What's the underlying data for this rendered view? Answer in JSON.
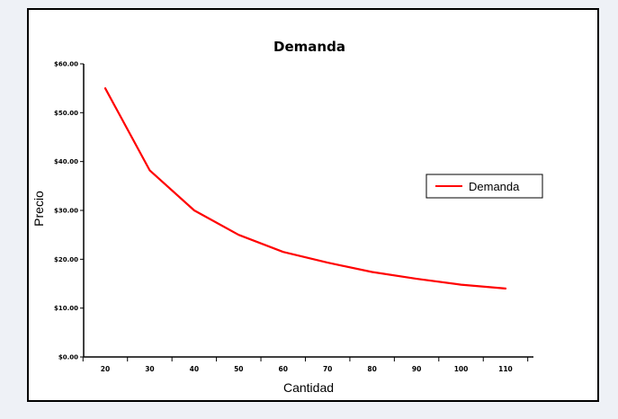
{
  "chart_data": {
    "type": "line",
    "title": "Demanda",
    "xlabel": "Cantidad",
    "ylabel": "Precio",
    "x": [
      20,
      30,
      40,
      50,
      60,
      70,
      80,
      90,
      100,
      110
    ],
    "x_tick_labels": [
      "20",
      "30",
      "40",
      "50",
      "60",
      "70",
      "80",
      "90",
      "100",
      "110"
    ],
    "y_tick_labels": [
      "$0.00",
      "$10.00",
      "$20.00",
      "$30.00",
      "$40.00",
      "$50.00",
      "$60.00"
    ],
    "ylim": [
      0,
      60
    ],
    "grid": false,
    "legend_position": "right",
    "series": [
      {
        "name": "Demanda",
        "color": "#ff0000",
        "values": [
          55.0,
          38.2,
          30.0,
          25.0,
          21.5,
          19.3,
          17.4,
          16.0,
          14.8,
          14.0
        ]
      }
    ]
  }
}
